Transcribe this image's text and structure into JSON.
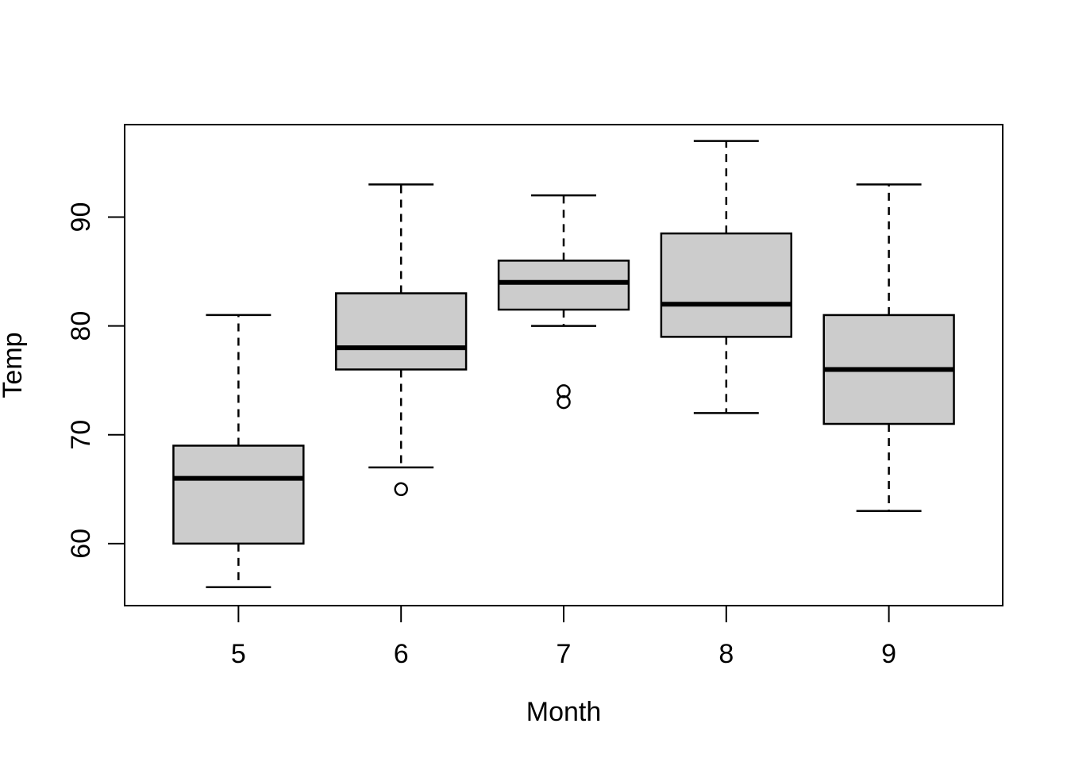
{
  "chart_data": {
    "type": "boxplot",
    "title": "",
    "xlabel": "Month",
    "ylabel": "Temp",
    "categories": [
      "5",
      "6",
      "7",
      "8",
      "9"
    ],
    "series": [
      {
        "category": "5",
        "lower_whisker": 56,
        "q1": 60,
        "median": 66,
        "q3": 69,
        "upper_whisker": 81,
        "outliers": []
      },
      {
        "category": "6",
        "lower_whisker": 67,
        "q1": 76,
        "median": 78,
        "q3": 83,
        "upper_whisker": 93,
        "outliers": [
          65
        ]
      },
      {
        "category": "7",
        "lower_whisker": 80,
        "q1": 81.5,
        "median": 84,
        "q3": 86,
        "upper_whisker": 92,
        "outliers": [
          73,
          74
        ]
      },
      {
        "category": "8",
        "lower_whisker": 72,
        "q1": 79,
        "median": 82,
        "q3": 88.5,
        "upper_whisker": 97,
        "outliers": []
      },
      {
        "category": "9",
        "lower_whisker": 63,
        "q1": 71,
        "median": 76,
        "q3": 81,
        "upper_whisker": 93,
        "outliers": []
      }
    ],
    "x_tick_values": [
      5,
      6,
      7,
      8,
      9
    ],
    "x_tick_labels": [
      "5",
      "6",
      "7",
      "8",
      "9"
    ],
    "y_tick_values": [
      60,
      70,
      80,
      90
    ],
    "y_tick_labels": [
      "60",
      "70",
      "80",
      "90"
    ],
    "xlim": [
      4.3,
      9.7
    ],
    "ylim": [
      54.3,
      98.5
    ],
    "grid": false,
    "legend": false,
    "box_width": 0.8,
    "cap_width": 0.4,
    "colors": {
      "box_fill": "#cccccc",
      "stroke": "#000000",
      "background": "#ffffff"
    }
  }
}
